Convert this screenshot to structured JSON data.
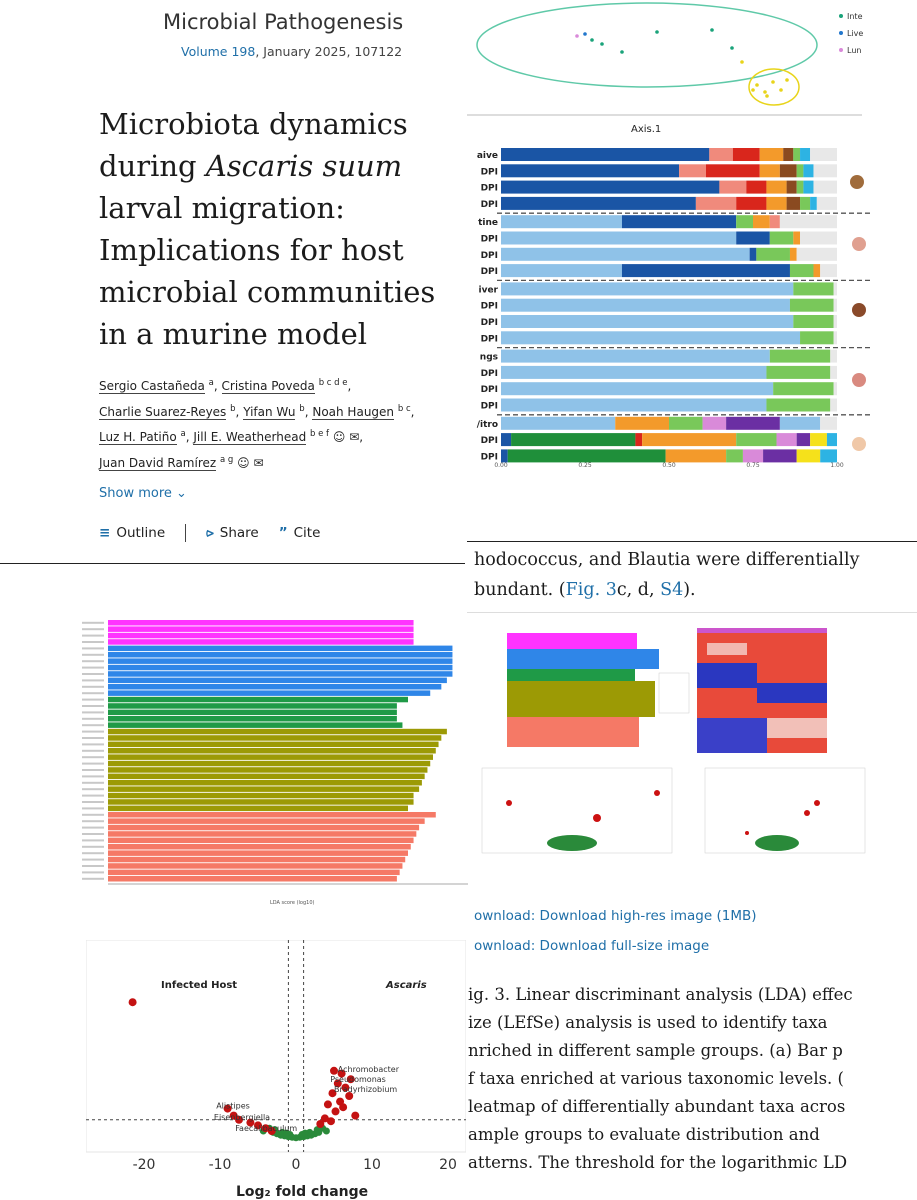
{
  "journal": {
    "name": "Microbial Pathogenesis",
    "volume_label": "Volume 198",
    "volume_rest": ", January 2025, 107122"
  },
  "article": {
    "title_lines": [
      "Microbiota dynamics",
      "during Ascaris suum",
      "larval migration:",
      "Implications for host",
      "microbial communities",
      "in a murine model"
    ],
    "authors": [
      {
        "name": "Sergio Castañeda",
        "aff": "a",
        "sep": ", "
      },
      {
        "name": "Cristina Poveda",
        "aff": "b c d e",
        "sep": ","
      },
      {
        "name": "Charlie Suarez-Reyes",
        "aff": "b",
        "sep": ", "
      },
      {
        "name": "Yifan Wu",
        "aff": "b",
        "sep": ", "
      },
      {
        "name": "Noah Haugen",
        "aff": "b c",
        "sep": ","
      },
      {
        "name": "Luz H. Patiño",
        "aff": "a",
        "sep": ", "
      },
      {
        "name": "Jill E. Weatherhead",
        "aff": "b e f",
        "sep": ","
      },
      {
        "name": "Juan David Ramírez",
        "aff": "a g",
        "sep": ""
      }
    ],
    "show_more": "Show more",
    "toolbar": {
      "outline": "Outline",
      "share": "Share",
      "cite": "Cite"
    }
  },
  "body": {
    "line1": "hodococcus, and Blautia were differentially",
    "line2_prefix": "bundant. (",
    "fig_link": "Fig. 3",
    "mid": "c, d, ",
    "s4_link": "S4",
    "line2_suffix": ")."
  },
  "downloads": {
    "highres": "ownload: Download high-res image (1MB)",
    "fullsize": "ownload: Download full-size image"
  },
  "caption": {
    "lines": [
      "ig. 3. Linear discriminant analysis (LDA) effec",
      "ize (LEfSe) analysis is used to identify taxa",
      "nriched in different sample groups. (a) Bar p",
      "f taxa enriched at various taxonomic levels. (",
      "leatmap of differentially abundant taxa acros",
      "ample groups to evaluate distribution and",
      "atterns. The threshold for the logarithmic LD"
    ]
  },
  "chart_data": [
    {
      "type": "scatter",
      "xlabel": "Axis.1",
      "legend": [
        "Inte",
        "Live",
        "Lun"
      ],
      "legend_colors": [
        "#1aa37a",
        "#2277cc",
        "#d98ad9"
      ]
    },
    {
      "type": "bar",
      "orientation": "horizontal-stacked",
      "row_labels": [
        "aive",
        "DPI",
        "DPI",
        "DPI",
        "tine",
        "DPI",
        "DPI",
        "DPI",
        "iver",
        "DPI",
        "DPI",
        "DPI",
        "ngs",
        "DPI",
        "DPI",
        "DPI",
        "/itro",
        "DPI",
        "DPI"
      ],
      "xticks": [
        "0.00",
        "0.25",
        "0.50",
        "0.75",
        "1.00"
      ],
      "xlim": [
        0,
        1
      ],
      "group_separators_after": [
        3,
        7,
        11,
        15
      ],
      "rows": [
        [
          [
            "#1a55a5",
            0.62
          ],
          [
            "#f08a7c",
            0.07
          ],
          [
            "#d9261c",
            0.08
          ],
          [
            "#f39a2b",
            0.07
          ],
          [
            "#8a4a20",
            0.03
          ],
          [
            "#79c85a",
            0.02
          ],
          [
            "#2db3e3",
            0.03
          ],
          [
            "#e8e8e8",
            0.08
          ]
        ],
        [
          [
            "#1a55a5",
            0.53
          ],
          [
            "#f08a7c",
            0.08
          ],
          [
            "#d9261c",
            0.16
          ],
          [
            "#f39a2b",
            0.06
          ],
          [
            "#8a4a20",
            0.05
          ],
          [
            "#79c85a",
            0.02
          ],
          [
            "#2db3e3",
            0.03
          ],
          [
            "#e8e8e8",
            0.07
          ]
        ],
        [
          [
            "#1a55a5",
            0.65
          ],
          [
            "#f08a7c",
            0.08
          ],
          [
            "#d9261c",
            0.06
          ],
          [
            "#f39a2b",
            0.06
          ],
          [
            "#8a4a20",
            0.03
          ],
          [
            "#79c85a",
            0.02
          ],
          [
            "#2db3e3",
            0.03
          ],
          [
            "#e8e8e8",
            0.07
          ]
        ],
        [
          [
            "#1a55a5",
            0.58
          ],
          [
            "#f08a7c",
            0.12
          ],
          [
            "#d9261c",
            0.09
          ],
          [
            "#f39a2b",
            0.06
          ],
          [
            "#8a4a20",
            0.04
          ],
          [
            "#79c85a",
            0.03
          ],
          [
            "#2db3e3",
            0.02
          ],
          [
            "#e8e8e8",
            0.06
          ]
        ],
        [
          [
            "#8fc2e8",
            0.36
          ],
          [
            "#1a55a5",
            0.34
          ],
          [
            "#79c85a",
            0.05
          ],
          [
            "#f39a2b",
            0.05
          ],
          [
            "#f08a7c",
            0.03
          ],
          [
            "#e8e8e8",
            0.17
          ]
        ],
        [
          [
            "#8fc2e8",
            0.7
          ],
          [
            "#1a55a5",
            0.1
          ],
          [
            "#79c85a",
            0.07
          ],
          [
            "#f39a2b",
            0.02
          ],
          [
            "#e8e8e8",
            0.11
          ]
        ],
        [
          [
            "#8fc2e8",
            0.74
          ],
          [
            "#1a55a5",
            0.02
          ],
          [
            "#79c85a",
            0.1
          ],
          [
            "#f39a2b",
            0.02
          ],
          [
            "#e8e8e8",
            0.12
          ]
        ],
        [
          [
            "#8fc2e8",
            0.36
          ],
          [
            "#1a55a5",
            0.5
          ],
          [
            "#79c85a",
            0.07
          ],
          [
            "#f39a2b",
            0.02
          ],
          [
            "#e8e8e8",
            0.05
          ]
        ],
        [
          [
            "#8fc2e8",
            0.87
          ],
          [
            "#79c85a",
            0.12
          ],
          [
            "#e8e8e8",
            0.01
          ]
        ],
        [
          [
            "#8fc2e8",
            0.86
          ],
          [
            "#79c85a",
            0.13
          ],
          [
            "#e8e8e8",
            0.01
          ]
        ],
        [
          [
            "#8fc2e8",
            0.87
          ],
          [
            "#79c85a",
            0.12
          ],
          [
            "#e8e8e8",
            0.01
          ]
        ],
        [
          [
            "#8fc2e8",
            0.89
          ],
          [
            "#79c85a",
            0.1
          ],
          [
            "#e8e8e8",
            0.01
          ]
        ],
        [
          [
            "#8fc2e8",
            0.8
          ],
          [
            "#79c85a",
            0.18
          ],
          [
            "#e8e8e8",
            0.02
          ]
        ],
        [
          [
            "#8fc2e8",
            0.79
          ],
          [
            "#79c85a",
            0.19
          ],
          [
            "#e8e8e8",
            0.02
          ]
        ],
        [
          [
            "#8fc2e8",
            0.81
          ],
          [
            "#79c85a",
            0.18
          ],
          [
            "#e8e8e8",
            0.01
          ]
        ],
        [
          [
            "#8fc2e8",
            0.79
          ],
          [
            "#79c85a",
            0.19
          ],
          [
            "#e8e8e8",
            0.02
          ]
        ],
        [
          [
            "#8fc2e8",
            0.34
          ],
          [
            "#f39a2b",
            0.16
          ],
          [
            "#79c85a",
            0.1
          ],
          [
            "#d98ad9",
            0.07
          ],
          [
            "#6b2fa3",
            0.16
          ],
          [
            "#8fc2e8",
            0.12
          ],
          [
            "#e8e8e8",
            0.05
          ]
        ],
        [
          [
            "#1a55a5",
            0.03
          ],
          [
            "#1f8f3a",
            0.37
          ],
          [
            "#d9261c",
            0.02
          ],
          [
            "#f39a2b",
            0.28
          ],
          [
            "#79c85a",
            0.12
          ],
          [
            "#d98ad9",
            0.06
          ],
          [
            "#6b2fa3",
            0.04
          ],
          [
            "#f5e11b",
            0.05
          ],
          [
            "#2db3e3",
            0.03
          ]
        ],
        [
          [
            "#1a55a5",
            0.02
          ],
          [
            "#1f8f3a",
            0.47
          ],
          [
            "#f39a2b",
            0.18
          ],
          [
            "#79c85a",
            0.05
          ],
          [
            "#d98ad9",
            0.06
          ],
          [
            "#6b2fa3",
            0.1
          ],
          [
            "#f5e11b",
            0.07
          ],
          [
            "#2db3e3",
            0.05
          ]
        ]
      ]
    },
    {
      "type": "bar",
      "orientation": "horizontal",
      "xlabel": "LDA score (log10)",
      "values": [
        5.5,
        5.5,
        5.5,
        5.5,
        6.2,
        6.2,
        6.2,
        6.2,
        6.2,
        6.1,
        6.0,
        5.8,
        5.4,
        5.2,
        5.2,
        5.2,
        5.3,
        6.1,
        6.0,
        5.95,
        5.9,
        5.85,
        5.8,
        5.75,
        5.7,
        5.65,
        5.6,
        5.5,
        5.5,
        5.4,
        5.9,
        5.7,
        5.6,
        5.55,
        5.5,
        5.45,
        5.4,
        5.35,
        5.3,
        5.25,
        5.2
      ],
      "colors": [
        "#ff33ff",
        "#ff33ff",
        "#ff33ff",
        "#ff33ff",
        "#2f86e8",
        "#2f86e8",
        "#2f86e8",
        "#2f86e8",
        "#2f86e8",
        "#2f86e8",
        "#2f86e8",
        "#2f86e8",
        "#1f9a47",
        "#1f9a47",
        "#1f9a47",
        "#1f9a47",
        "#1f9a47",
        "#9c9a05",
        "#9c9a05",
        "#9c9a05",
        "#9c9a05",
        "#9c9a05",
        "#9c9a05",
        "#9c9a05",
        "#9c9a05",
        "#9c9a05",
        "#9c9a05",
        "#9c9a05",
        "#9c9a05",
        "#9c9a05",
        "#f57966",
        "#f57966",
        "#f57966",
        "#f57966",
        "#f57966",
        "#f57966",
        "#f57966",
        "#f57966",
        "#f57966",
        "#f57966",
        "#f57966"
      ]
    },
    {
      "type": "scatter",
      "title_left": "Infected Host",
      "title_right": "Ascaris",
      "xlabel": "Log₂ fold change",
      "xlim": [
        -25,
        20
      ],
      "ylim": [
        0,
        15
      ],
      "xticks": [
        -20,
        -10,
        0,
        10,
        20
      ],
      "annotations": [
        {
          "text": "Achromobacter",
          "x": 5.5,
          "y": 4.7
        },
        {
          "text": "Pseudomonas",
          "x": 4.5,
          "y": 4.0
        },
        {
          "text": "Bradyrhizobium",
          "x": 5.0,
          "y": 3.3
        },
        {
          "text": "Alistipes",
          "x": -10.5,
          "y": 2.1
        },
        {
          "text": "Eisenbergiella",
          "x": -10.8,
          "y": 1.3
        },
        {
          "text": "Faecalibaculum",
          "x": -8.0,
          "y": 0.5
        }
      ],
      "points_red": [
        [
          -21.5,
          9.7
        ],
        [
          5.0,
          4.8
        ],
        [
          6.0,
          4.6
        ],
        [
          7.2,
          4.2
        ],
        [
          5.5,
          3.9
        ],
        [
          6.5,
          3.6
        ],
        [
          4.8,
          3.2
        ],
        [
          7.0,
          3.0
        ],
        [
          5.8,
          2.6
        ],
        [
          4.2,
          2.4
        ],
        [
          6.2,
          2.2
        ],
        [
          5.2,
          1.9
        ],
        [
          7.8,
          1.6
        ],
        [
          3.8,
          1.4
        ],
        [
          -9.0,
          2.1
        ],
        [
          -8.2,
          1.6
        ],
        [
          -7.5,
          1.3
        ],
        [
          -6.0,
          1.1
        ],
        [
          -5.0,
          0.9
        ],
        [
          -4.0,
          0.7
        ],
        [
          -3.2,
          0.5
        ],
        [
          3.2,
          1.0
        ],
        [
          4.6,
          1.2
        ]
      ],
      "points_green": [
        [
          -3,
          0.4
        ],
        [
          -2.5,
          0.3
        ],
        [
          -2,
          0.2
        ],
        [
          -1.5,
          0.15
        ],
        [
          -1,
          0.1
        ],
        [
          -0.5,
          0.05
        ],
        [
          0,
          0.02
        ],
        [
          0.5,
          0.05
        ],
        [
          1,
          0.1
        ],
        [
          1.5,
          0.15
        ],
        [
          2,
          0.2
        ],
        [
          2.5,
          0.3
        ],
        [
          3,
          0.4
        ],
        [
          -2.8,
          0.6
        ],
        [
          -1.8,
          0.4
        ],
        [
          1.8,
          0.4
        ],
        [
          2.8,
          0.6
        ],
        [
          3.5,
          0.7
        ],
        [
          -3.5,
          0.7
        ],
        [
          0.8,
          0.25
        ],
        [
          -0.8,
          0.25
        ],
        [
          4,
          0.5
        ],
        [
          -4.3,
          0.5
        ],
        [
          1.2,
          0.35
        ],
        [
          -1.2,
          0.35
        ]
      ]
    }
  ]
}
